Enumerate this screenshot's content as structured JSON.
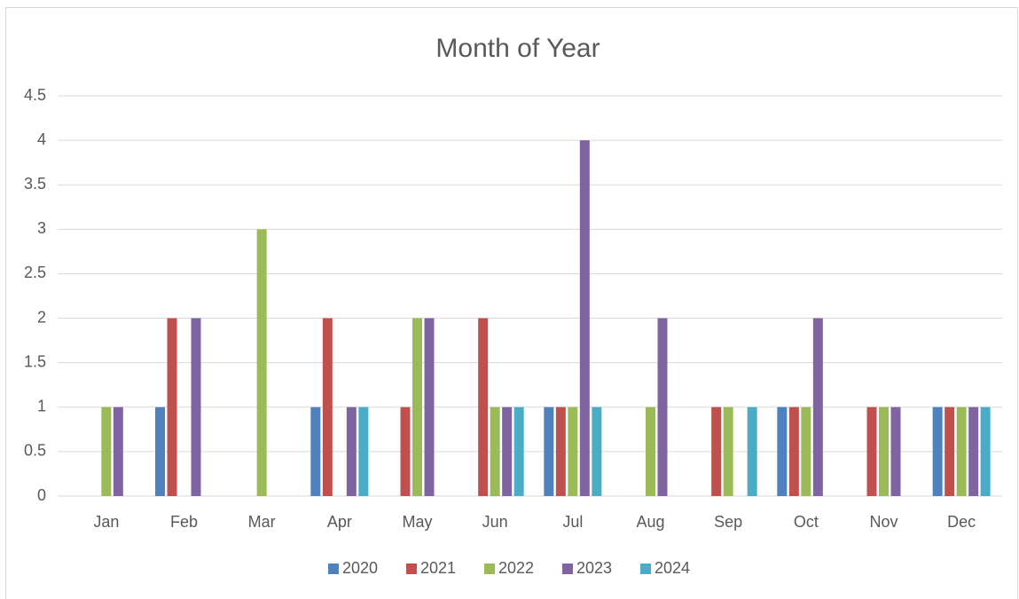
{
  "chart_data": {
    "type": "bar",
    "title": "Month of Year",
    "categories": [
      "Jan",
      "Feb",
      "Mar",
      "Apr",
      "May",
      "Jun",
      "Jul",
      "Aug",
      "Sep",
      "Oct",
      "Nov",
      "Dec"
    ],
    "series": [
      {
        "name": "2020",
        "color": "#4f81bd",
        "values": [
          0,
          1,
          0,
          1,
          0,
          0,
          1,
          0,
          0,
          1,
          0,
          1
        ]
      },
      {
        "name": "2021",
        "color": "#c0504d",
        "values": [
          0,
          2,
          0,
          2,
          1,
          2,
          1,
          0,
          1,
          1,
          1,
          1
        ]
      },
      {
        "name": "2022",
        "color": "#9bbb59",
        "values": [
          1,
          0,
          3,
          0,
          2,
          1,
          1,
          1,
          1,
          1,
          1,
          1
        ]
      },
      {
        "name": "2023",
        "color": "#8064a2",
        "values": [
          1,
          2,
          0,
          1,
          2,
          1,
          4,
          2,
          0,
          2,
          1,
          1
        ]
      },
      {
        "name": "2024",
        "color": "#4bacc6",
        "values": [
          0,
          0,
          0,
          1,
          0,
          1,
          1,
          0,
          1,
          0,
          0,
          1
        ]
      }
    ],
    "ylim": [
      0,
      4.5
    ],
    "yticks": [
      0,
      0.5,
      1,
      1.5,
      2,
      2.5,
      3,
      3.5,
      4,
      4.5
    ],
    "grid": true,
    "legend": "bottom"
  }
}
